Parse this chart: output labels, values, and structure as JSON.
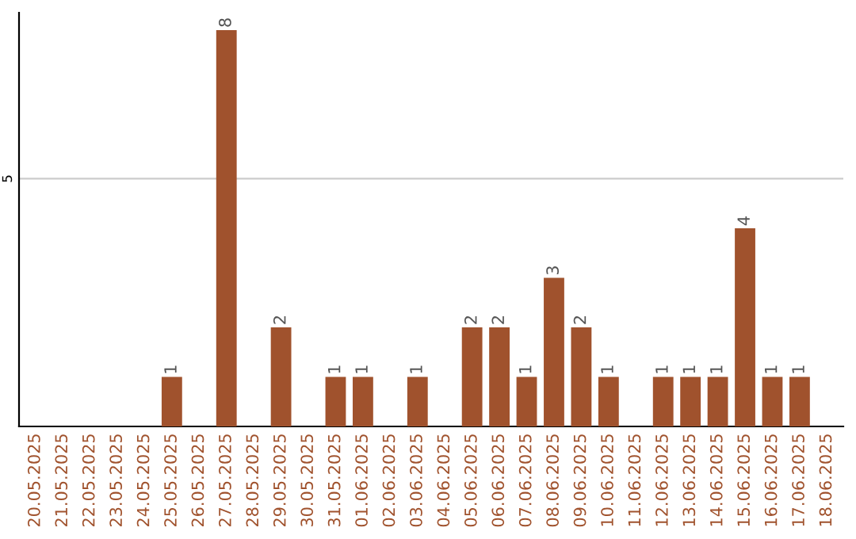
{
  "chart_data": {
    "type": "bar",
    "categories": [
      "20.05.2025",
      "21.05.2025",
      "22.05.2025",
      "23.05.2025",
      "24.05.2025",
      "25.05.2025",
      "26.05.2025",
      "27.05.2025",
      "28.05.2025",
      "29.05.2025",
      "30.05.2025",
      "31.05.2025",
      "01.06.2025",
      "02.06.2025",
      "03.06.2025",
      "04.06.2025",
      "05.06.2025",
      "06.06.2025",
      "07.06.2025",
      "08.06.2025",
      "09.06.2025",
      "10.06.2025",
      "11.06.2025",
      "12.06.2025",
      "13.06.2025",
      "14.06.2025",
      "15.06.2025",
      "16.06.2025",
      "17.06.2025",
      "18.06.2025"
    ],
    "values": [
      0,
      0,
      0,
      0,
      0,
      1,
      0,
      8,
      0,
      2,
      0,
      1,
      1,
      0,
      1,
      0,
      2,
      2,
      1,
      3,
      2,
      1,
      0,
      1,
      1,
      1,
      4,
      1,
      1,
      0
    ],
    "value_labels": [
      null,
      null,
      null,
      null,
      null,
      "1",
      null,
      "8",
      null,
      "2",
      null,
      "1",
      "1",
      null,
      "1",
      null,
      "2",
      "2",
      "1",
      "3",
      "2",
      "1",
      null,
      "1",
      "1",
      "1",
      "4",
      "1",
      "1",
      null
    ],
    "color": "#a0522d",
    "ylim": [
      0,
      8.35
    ],
    "yticks": [
      5
    ],
    "grid": "y",
    "legend": false
  }
}
